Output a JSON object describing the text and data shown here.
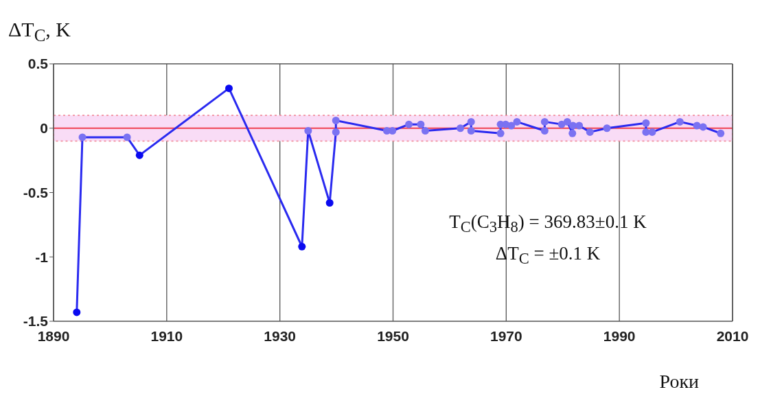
{
  "chart_data": {
    "type": "line",
    "ylabel": "ΔT$_{C}$, K",
    "xlabel": "Роки",
    "annotations": [
      "T$_{C}$(C$_{3}$H$_{8}$) = 369.83±0.1 K",
      "ΔT$_{C}$ = ±0.1 K"
    ],
    "x": [
      1894.1,
      1895.1,
      1903.0,
      1905.2,
      1921.0,
      1933.9,
      1935.0,
      1938.8,
      1939.9,
      1939.9,
      1948.9,
      1949.9,
      1952.8,
      1954.9,
      1955.7,
      1961.9,
      1963.8,
      1963.8,
      1969.0,
      1969.0,
      1969.9,
      1970.9,
      1971.9,
      1976.8,
      1976.8,
      1979.8,
      1980.8,
      1981.7,
      1981.8,
      1982.9,
      1984.8,
      1987.8,
      1994.7,
      1994.7,
      1995.8,
      2000.7,
      2003.7,
      2004.8,
      2007.9
    ],
    "series": [
      {
        "color": "#2a2af0",
        "values": [
          -1.43,
          -0.07,
          -0.07,
          -0.21,
          0.31,
          -0.92,
          -0.02,
          -0.58,
          -0.03,
          0.06,
          -0.02,
          -0.02,
          0.03,
          0.03,
          -0.02,
          0.0,
          0.05,
          -0.02,
          -0.04,
          0.03,
          0.03,
          0.02,
          0.05,
          -0.02,
          0.05,
          0.03,
          0.05,
          -0.04,
          0.02,
          0.02,
          -0.03,
          0.0,
          0.04,
          -0.03,
          -0.03,
          0.05,
          0.02,
          0.01,
          -0.04
        ],
        "colors": [
          "#0a0af0",
          "#7a72f2",
          "#7a72f2",
          "#0a0af0",
          "#0a0af0",
          "#0a0af0",
          "#7a72f2",
          "#0a0af0",
          "#7a72f2",
          "#7a72f2",
          "#7a72f2",
          "#7a72f2",
          "#7a72f2",
          "#7a72f2",
          "#7a72f2",
          "#7a72f2",
          "#7a72f2",
          "#7a72f2",
          "#7a72f2",
          "#7a72f2",
          "#7a72f2",
          "#7a72f2",
          "#7a72f2",
          "#7a72f2",
          "#7a72f2",
          "#7a72f2",
          "#7a72f2",
          "#7a72f2",
          "#7a72f2",
          "#7a72f2",
          "#7a72f2",
          "#7a72f2",
          "#7a72f2",
          "#7a72f2",
          "#7a72f2",
          "#7a72f2",
          "#7a72f2",
          "#7a72f2",
          "#7a72f2"
        ]
      }
    ],
    "xlim": [
      1890,
      2010
    ],
    "xticks": [
      1890,
      1910,
      1930,
      1950,
      1970,
      1990,
      2010
    ],
    "ylim": [
      -1.5,
      0.5
    ],
    "yticks": [
      -1.5,
      -1,
      -0.5,
      0,
      0.5
    ],
    "ref_lines": [
      {
        "axis": "y",
        "value": 0,
        "color": "#f04050"
      }
    ],
    "bands": [
      {
        "axis": "y",
        "from": -0.1,
        "to": 0.1,
        "color": "#f9dcf6"
      }
    ],
    "grid": "x",
    "marker": "circle",
    "line_style": "solid"
  }
}
